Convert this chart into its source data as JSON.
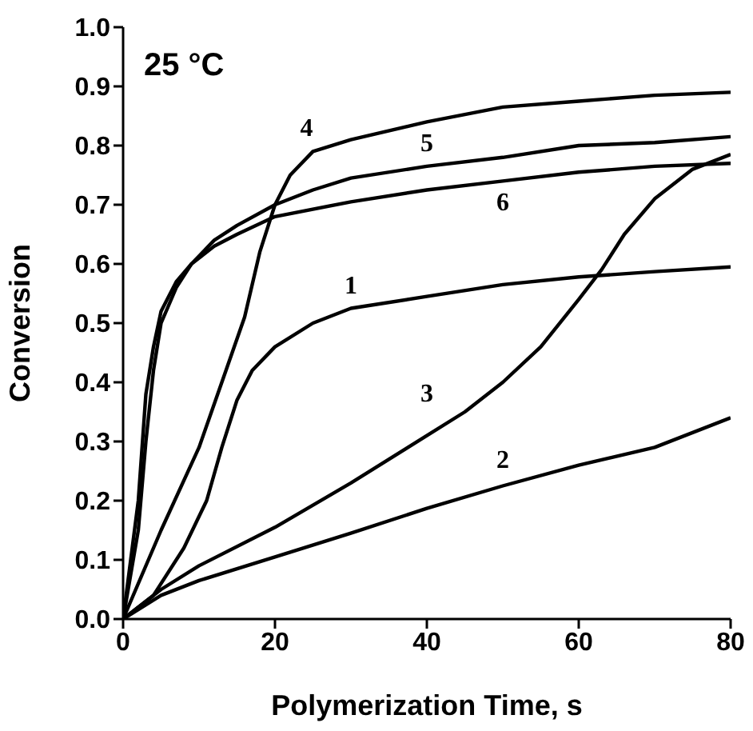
{
  "chart_data": {
    "type": "line",
    "xlabel": "Polymerization Time, s",
    "ylabel": "Conversion",
    "xlim": [
      0,
      80
    ],
    "xticks": [
      0,
      20,
      40,
      60,
      80
    ],
    "ylim": [
      0,
      1.0
    ],
    "yticks": [
      {
        "value": 0,
        "label": "0.0"
      },
      0.1,
      0.2,
      0.3,
      0.4,
      0.5,
      0.6,
      0.7,
      0.8,
      0.9,
      {
        "value": 1,
        "label": "1.0"
      }
    ],
    "grid": false,
    "legend": false,
    "marker": "none",
    "line_style": "solid",
    "series": [
      {
        "name": "1",
        "color": "#000000",
        "x": [
          0,
          4,
          8,
          11,
          13,
          15,
          17,
          20,
          25,
          30,
          40,
          50,
          60,
          70,
          80
        ],
        "values": [
          0,
          0.04,
          0.12,
          0.2,
          0.29,
          0.37,
          0.42,
          0.46,
          0.5,
          0.525,
          0.545,
          0.565,
          0.578,
          0.587,
          0.595
        ]
      },
      {
        "name": "2",
        "color": "#000000",
        "x": [
          0,
          5,
          10,
          20,
          30,
          40,
          50,
          60,
          70,
          80
        ],
        "values": [
          0,
          0.04,
          0.065,
          0.105,
          0.145,
          0.187,
          0.225,
          0.26,
          0.29,
          0.34
        ]
      },
      {
        "name": "3",
        "color": "#000000",
        "x": [
          0,
          5,
          10,
          20,
          30,
          40,
          45,
          50,
          55,
          60,
          63,
          66,
          70,
          75,
          80
        ],
        "values": [
          0,
          0.05,
          0.09,
          0.155,
          0.23,
          0.31,
          0.35,
          0.4,
          0.46,
          0.54,
          0.59,
          0.65,
          0.71,
          0.76,
          0.785
        ]
      },
      {
        "name": "4",
        "color": "#000000",
        "x": [
          0,
          5,
          10,
          13,
          16,
          18,
          20,
          22,
          25,
          30,
          40,
          50,
          60,
          70,
          80
        ],
        "values": [
          0,
          0.15,
          0.29,
          0.4,
          0.51,
          0.62,
          0.7,
          0.75,
          0.79,
          0.81,
          0.84,
          0.865,
          0.875,
          0.885,
          0.89
        ]
      },
      {
        "name": "5",
        "color": "#000000",
        "x": [
          0,
          2,
          3,
          4,
          5,
          7,
          9,
          12,
          15,
          20,
          25,
          30,
          40,
          50,
          60,
          70,
          80
        ],
        "values": [
          0,
          0.2,
          0.38,
          0.46,
          0.52,
          0.57,
          0.6,
          0.64,
          0.665,
          0.7,
          0.725,
          0.745,
          0.765,
          0.78,
          0.8,
          0.805,
          0.815
        ]
      },
      {
        "name": "6",
        "color": "#000000",
        "x": [
          0,
          2,
          3,
          4,
          5,
          7,
          9,
          12,
          15,
          20,
          30,
          40,
          50,
          60,
          70,
          80
        ],
        "values": [
          0,
          0.15,
          0.3,
          0.42,
          0.5,
          0.56,
          0.6,
          0.63,
          0.65,
          0.68,
          0.705,
          0.725,
          0.74,
          0.755,
          0.765,
          0.77
        ]
      }
    ],
    "annotations": [
      "25 °C"
    ]
  }
}
